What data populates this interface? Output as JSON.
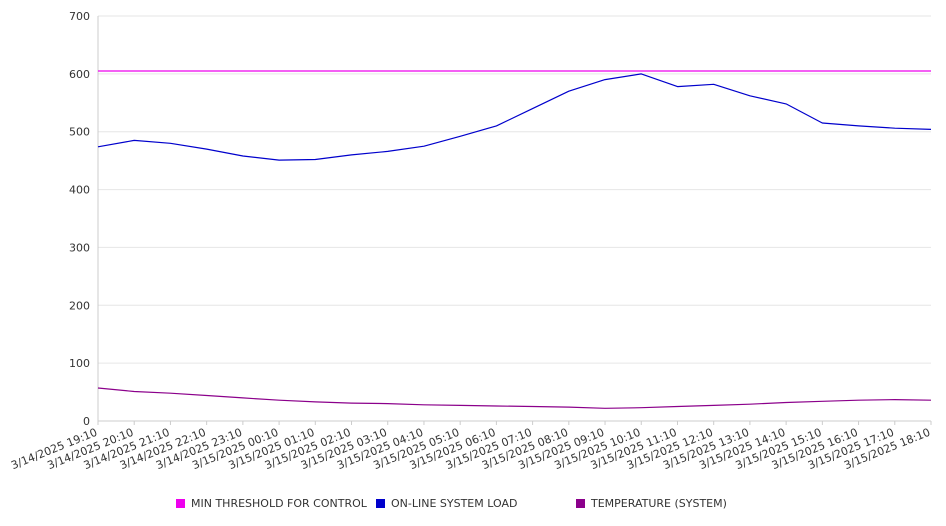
{
  "chart_data": {
    "type": "line",
    "ylim": [
      0,
      700
    ],
    "yticks": [
      0,
      100,
      200,
      300,
      400,
      500,
      600,
      700
    ],
    "grid": true,
    "legend_position": "bottom",
    "categories": [
      "3/14/2025 19:10",
      "3/14/2025 20:10",
      "3/14/2025 21:10",
      "3/14/2025 22:10",
      "3/14/2025 23:10",
      "3/15/2025 00:10",
      "3/15/2025 01:10",
      "3/15/2025 02:10",
      "3/15/2025 03:10",
      "3/15/2025 04:10",
      "3/15/2025 05:10",
      "3/15/2025 06:10",
      "3/15/2025 07:10",
      "3/15/2025 08:10",
      "3/15/2025 09:10",
      "3/15/2025 10:10",
      "3/15/2025 11:10",
      "3/15/2025 12:10",
      "3/15/2025 13:10",
      "3/15/2025 14:10",
      "3/15/2025 15:10",
      "3/15/2025 16:10",
      "3/15/2025 17:10",
      "3/15/2025 18:10"
    ],
    "series": [
      {
        "name": "MIN THRESHOLD FOR CONTROL",
        "color": "#ee00ee",
        "values": [
          605,
          605,
          605,
          605,
          605,
          605,
          605,
          605,
          605,
          605,
          605,
          605,
          605,
          605,
          605,
          605,
          605,
          605,
          605,
          605,
          605,
          605,
          605,
          605
        ]
      },
      {
        "name": "ON-LINE SYSTEM LOAD",
        "color": "#0000cc",
        "values": [
          474,
          485,
          480,
          470,
          458,
          451,
          452,
          460,
          466,
          475,
          492,
          510,
          540,
          570,
          590,
          600,
          578,
          582,
          562,
          548,
          515,
          510,
          506,
          504
        ]
      },
      {
        "name": "TEMPERATURE (SYSTEM)",
        "color": "#8b008b",
        "values": [
          57,
          51,
          48,
          44,
          40,
          36,
          33,
          31,
          30,
          28,
          27,
          26,
          25,
          24,
          22,
          23,
          25,
          27,
          29,
          32,
          34,
          36,
          37,
          36
        ]
      }
    ]
  }
}
